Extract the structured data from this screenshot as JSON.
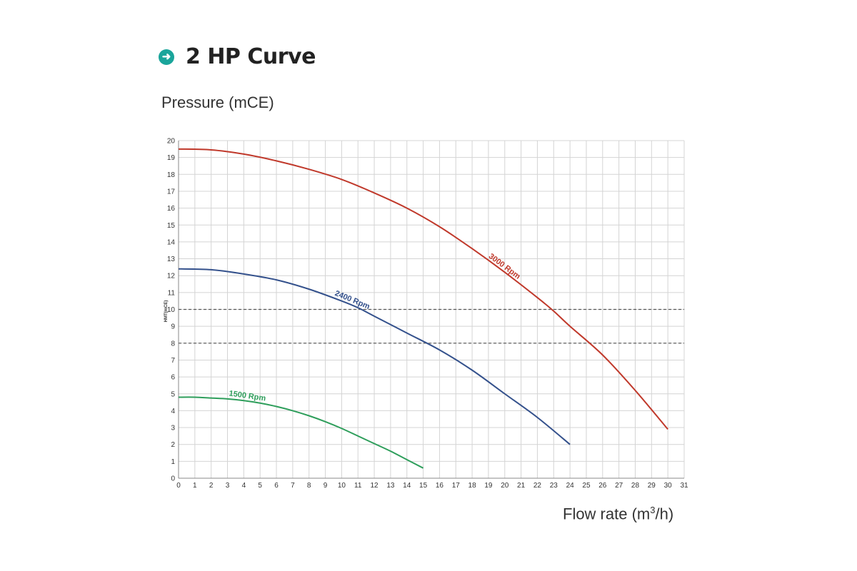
{
  "header": {
    "icon": "arrow-right-circle-icon",
    "title": "2 HP Curve"
  },
  "axis_labels": {
    "y_label": "Pressure (mCE)",
    "x_label_main": "Flow rate (m",
    "x_label_sup": "3",
    "x_label_end": "/h)",
    "y_axis_small_label": "HMT(mCE)"
  },
  "chart_data": {
    "type": "line",
    "title": "2 HP Curve",
    "xlabel": "Flow rate (m³/h)",
    "ylabel": "Pressure (mCE)",
    "xlim": [
      0,
      31
    ],
    "ylim": [
      0,
      20
    ],
    "xticks": [
      0,
      1,
      2,
      3,
      4,
      5,
      6,
      7,
      8,
      9,
      10,
      11,
      12,
      13,
      14,
      15,
      16,
      17,
      18,
      19,
      20,
      21,
      22,
      23,
      24,
      25,
      26,
      27,
      28,
      29,
      30,
      31
    ],
    "yticks": [
      0,
      1,
      2,
      3,
      4,
      5,
      6,
      7,
      8,
      9,
      10,
      11,
      12,
      13,
      14,
      15,
      16,
      17,
      18,
      19,
      20
    ],
    "grid": true,
    "legend": "none",
    "reference_lines": [
      {
        "axis": "y",
        "value": 10,
        "style": "dashed"
      },
      {
        "axis": "y",
        "value": 8,
        "style": "dashed"
      }
    ],
    "series": [
      {
        "name": "3000 Rpm",
        "label": "3000 Rpm",
        "color": "#c0392b",
        "x": [
          0,
          2,
          4,
          6,
          8,
          10,
          12,
          14,
          16,
          18,
          20,
          22,
          23,
          24,
          26,
          28,
          30
        ],
        "y": [
          19.5,
          19.45,
          19.2,
          18.8,
          18.3,
          17.7,
          16.9,
          16.0,
          14.9,
          13.6,
          12.2,
          10.7,
          9.9,
          9.0,
          7.3,
          5.2,
          2.9
        ]
      },
      {
        "name": "2400 Rpm",
        "label": "2400 Rpm",
        "color": "#34518c",
        "x": [
          0,
          2,
          4,
          6,
          8,
          10,
          11,
          12,
          14,
          16,
          18,
          20,
          22,
          24
        ],
        "y": [
          12.4,
          12.35,
          12.1,
          11.75,
          11.2,
          10.5,
          10.1,
          9.6,
          8.6,
          7.6,
          6.4,
          5.0,
          3.6,
          2.0
        ]
      },
      {
        "name": "1500 Rpm",
        "label": "1500 Rpm",
        "color": "#2e9e5b",
        "x": [
          0,
          1,
          2,
          3,
          4,
          5,
          6,
          7,
          8,
          9,
          10,
          11,
          12,
          13,
          14,
          15
        ],
        "y": [
          4.8,
          4.8,
          4.75,
          4.7,
          4.6,
          4.45,
          4.25,
          4.0,
          3.7,
          3.35,
          2.95,
          2.5,
          2.05,
          1.6,
          1.1,
          0.6
        ]
      }
    ]
  },
  "colors": {
    "accent": "#1aa59b",
    "grid": "#d4d4d4",
    "dashed": "#555555"
  }
}
